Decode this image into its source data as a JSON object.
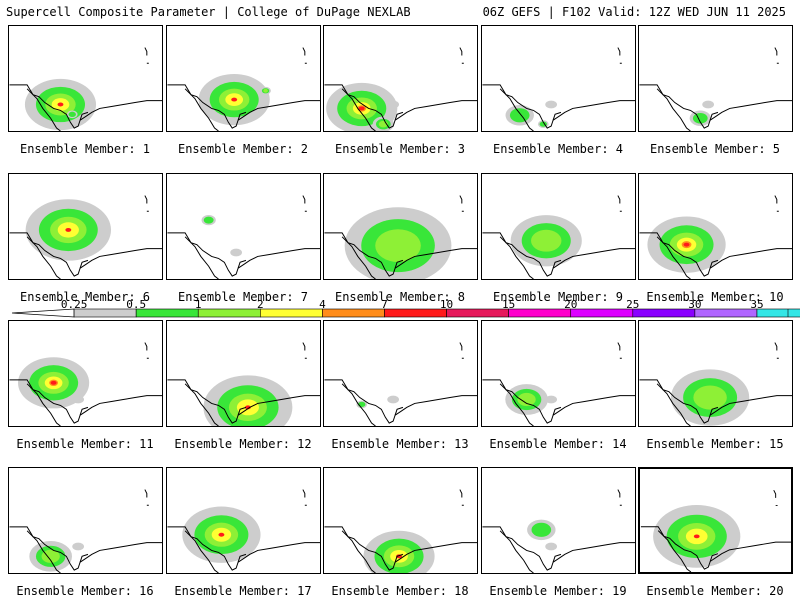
{
  "header": {
    "left": "Supercell Composite Parameter | College of DuPage NEXLAB",
    "right": "06Z GEFS | F102 Valid: 12Z WED JUN 11 2025"
  },
  "colorbar": {
    "ticks": [
      "0.25",
      "0.5",
      "1",
      "2",
      "4",
      "7",
      "10",
      "15",
      "20",
      "25",
      "30",
      "35"
    ],
    "colors": [
      "#cdcdcd",
      "#39e639",
      "#8ef036",
      "#ffff33",
      "#ff8c1a",
      "#ff1a1a",
      "#e6195b",
      "#ff00cc",
      "#dd00ff",
      "#8a00ff",
      "#b066ff",
      "#33e6e6"
    ]
  },
  "members": [
    {
      "label": "Ensemble Member: 1",
      "blobs": [
        [
          52,
          80,
          20,
          2
        ],
        [
          64,
          90,
          3,
          0
        ]
      ]
    },
    {
      "label": "Ensemble Member: 2",
      "blobs": [
        [
          68,
          75,
          20,
          2
        ],
        [
          100,
          66,
          3,
          1
        ]
      ]
    },
    {
      "label": "Ensemble Member: 3",
      "blobs": [
        [
          38,
          84,
          20,
          3
        ],
        [
          60,
          100,
          6,
          1
        ]
      ]
    },
    {
      "label": "Ensemble Member: 4",
      "blobs": [
        [
          38,
          91,
          8,
          0
        ],
        [
          62,
          100,
          3,
          0
        ]
      ]
    },
    {
      "label": "Ensemble Member: 5",
      "blobs": [
        [
          62,
          94,
          6,
          0
        ]
      ]
    },
    {
      "label": "Ensemble Member: 6",
      "blobs": [
        [
          60,
          57,
          24,
          2
        ]
      ]
    },
    {
      "label": "Ensemble Member: 7",
      "blobs": [
        [
          42,
          47,
          4,
          0
        ]
      ]
    },
    {
      "label": "Ensemble Member: 8",
      "blobs": [
        [
          75,
          73,
          30,
          1
        ]
      ]
    },
    {
      "label": "Ensemble Member: 9",
      "blobs": [
        [
          65,
          68,
          20,
          1
        ]
      ]
    },
    {
      "label": "Ensemble Member: 10",
      "blobs": [
        [
          48,
          72,
          22,
          3
        ]
      ]
    },
    {
      "label": "Ensemble Member: 11",
      "blobs": [
        [
          45,
          63,
          20,
          3
        ]
      ]
    },
    {
      "label": "Ensemble Member: 12",
      "blobs": [
        [
          82,
          88,
          25,
          2
        ]
      ]
    },
    {
      "label": "Ensemble Member: 13",
      "blobs": [
        [
          38,
          85,
          3,
          0
        ]
      ]
    },
    {
      "label": "Ensemble Member: 14",
      "blobs": [
        [
          45,
          80,
          12,
          1
        ]
      ]
    },
    {
      "label": "Ensemble Member: 15",
      "blobs": [
        [
          72,
          78,
          22,
          1
        ]
      ]
    },
    {
      "label": "Ensemble Member: 16",
      "blobs": [
        [
          42,
          90,
          12,
          1
        ]
      ]
    },
    {
      "label": "Ensemble Member: 17",
      "blobs": [
        [
          55,
          68,
          22,
          2
        ]
      ]
    },
    {
      "label": "Ensemble Member: 18",
      "blobs": [
        [
          76,
          90,
          20,
          2
        ]
      ]
    },
    {
      "label": "Ensemble Member: 19",
      "blobs": [
        [
          60,
          63,
          8,
          0
        ]
      ]
    },
    {
      "label": "Ensemble Member: 20",
      "blobs": [
        [
          58,
          70,
          25,
          2
        ]
      ]
    }
  ]
}
